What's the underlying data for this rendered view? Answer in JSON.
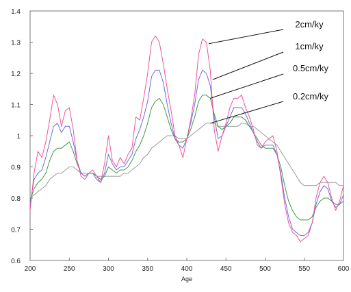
{
  "chart_data": {
    "type": "line",
    "title": "",
    "xlabel": "Age",
    "ylabel": "",
    "xlim": [
      200,
      600
    ],
    "ylim": [
      0.6,
      1.4
    ],
    "xticks": [
      "200",
      "250",
      "300",
      "350",
      "400",
      "450",
      "500",
      "550",
      "600"
    ],
    "yticks": [
      "0.6",
      "0.7",
      "0.8",
      "0.9",
      "1",
      "1.1",
      "1.2",
      "1.3",
      "1.4"
    ],
    "grid": false,
    "colors": {
      "2cm": "#f0549a",
      "1cm": "#6a6ae8",
      "0.5cm": "#3f9a3f",
      "0.2cm": "#9a9a9a"
    },
    "annotations": [
      {
        "text": "2cm/ky",
        "series": "2cm",
        "x": 428,
        "y": 1.295
      },
      {
        "text": "1cm/ky",
        "series": "1cm",
        "x": 433,
        "y": 1.18
      },
      {
        "text": "0.5cm/ky",
        "series": "0.5cm",
        "x": 430,
        "y": 1.12
      },
      {
        "text": "0.2cm/ky",
        "series": "0.2cm",
        "x": 430,
        "y": 1.04
      }
    ],
    "series": [
      {
        "key": "2cm",
        "x": [
          200,
          205,
          210,
          215,
          220,
          225,
          230,
          235,
          240,
          245,
          250,
          255,
          260,
          265,
          270,
          275,
          280,
          285,
          290,
          295,
          300,
          305,
          310,
          315,
          320,
          325,
          330,
          335,
          340,
          345,
          350,
          355,
          360,
          365,
          370,
          375,
          380,
          385,
          390,
          395,
          400,
          405,
          410,
          415,
          420,
          425,
          430,
          435,
          440,
          445,
          450,
          455,
          460,
          465,
          470,
          475,
          480,
          485,
          490,
          495,
          500,
          505,
          510,
          515,
          520,
          525,
          530,
          535,
          540,
          545,
          550,
          555,
          560,
          565,
          570,
          575,
          580,
          585,
          590,
          595,
          600
        ],
        "values": [
          0.76,
          0.88,
          0.95,
          0.93,
          0.98,
          1.05,
          1.13,
          1.1,
          1.03,
          1.08,
          1.09,
          1.02,
          0.92,
          0.87,
          0.86,
          0.88,
          0.89,
          0.87,
          0.85,
          0.91,
          1.0,
          0.92,
          0.9,
          0.93,
          0.91,
          0.94,
          0.96,
          1.06,
          1.05,
          1.12,
          1.2,
          1.3,
          1.32,
          1.3,
          1.23,
          1.15,
          1.08,
          1.0,
          0.97,
          0.93,
          0.99,
          1.05,
          1.13,
          1.26,
          1.31,
          1.3,
          1.21,
          1.02,
          0.95,
          1.0,
          1.04,
          1.09,
          1.12,
          1.12,
          1.13,
          1.09,
          1.06,
          1.02,
          0.97,
          0.96,
          0.98,
          0.99,
          1.0,
          0.95,
          0.87,
          0.78,
          0.72,
          0.69,
          0.68,
          0.66,
          0.67,
          0.68,
          0.72,
          0.8,
          0.85,
          0.87,
          0.85,
          0.8,
          0.76,
          0.79,
          0.84
        ]
      },
      {
        "key": "1cm",
        "x": [
          200,
          205,
          210,
          215,
          220,
          225,
          230,
          235,
          240,
          245,
          250,
          255,
          260,
          265,
          270,
          275,
          280,
          285,
          290,
          295,
          300,
          305,
          310,
          315,
          320,
          325,
          330,
          335,
          340,
          345,
          350,
          355,
          360,
          365,
          370,
          375,
          380,
          385,
          390,
          395,
          400,
          405,
          410,
          415,
          420,
          425,
          430,
          435,
          440,
          445,
          450,
          455,
          460,
          465,
          470,
          475,
          480,
          485,
          490,
          495,
          500,
          505,
          510,
          515,
          520,
          525,
          530,
          535,
          540,
          545,
          550,
          555,
          560,
          565,
          570,
          575,
          580,
          585,
          590,
          595,
          600
        ],
        "values": [
          0.78,
          0.86,
          0.88,
          0.89,
          0.93,
          0.98,
          1.03,
          1.04,
          1.01,
          1.03,
          1.03,
          0.98,
          0.92,
          0.88,
          0.87,
          0.88,
          0.88,
          0.86,
          0.85,
          0.88,
          0.94,
          0.91,
          0.89,
          0.9,
          0.9,
          0.92,
          0.94,
          0.99,
          1.02,
          1.06,
          1.11,
          1.19,
          1.21,
          1.21,
          1.17,
          1.1,
          1.04,
          0.99,
          0.97,
          0.96,
          0.99,
          1.04,
          1.1,
          1.18,
          1.21,
          1.2,
          1.16,
          1.06,
          0.99,
          1.0,
          1.03,
          1.06,
          1.09,
          1.09,
          1.09,
          1.07,
          1.04,
          1.01,
          0.98,
          0.96,
          0.97,
          0.97,
          0.97,
          0.94,
          0.88,
          0.8,
          0.74,
          0.7,
          0.69,
          0.68,
          0.68,
          0.69,
          0.72,
          0.78,
          0.82,
          0.84,
          0.83,
          0.79,
          0.77,
          0.78,
          0.81
        ]
      },
      {
        "key": "0.5cm",
        "x": [
          200,
          205,
          210,
          215,
          220,
          225,
          230,
          235,
          240,
          245,
          250,
          255,
          260,
          265,
          270,
          275,
          280,
          285,
          290,
          295,
          300,
          305,
          310,
          315,
          320,
          325,
          330,
          335,
          340,
          345,
          350,
          355,
          360,
          365,
          370,
          375,
          380,
          385,
          390,
          395,
          400,
          405,
          410,
          415,
          420,
          425,
          430,
          435,
          440,
          445,
          450,
          455,
          460,
          465,
          470,
          475,
          480,
          485,
          490,
          495,
          500,
          505,
          510,
          515,
          520,
          525,
          530,
          535,
          540,
          545,
          550,
          555,
          560,
          565,
          570,
          575,
          580,
          585,
          590,
          595,
          600
        ],
        "values": [
          0.79,
          0.83,
          0.85,
          0.86,
          0.88,
          0.92,
          0.95,
          0.96,
          0.96,
          0.97,
          0.98,
          0.95,
          0.91,
          0.88,
          0.87,
          0.88,
          0.88,
          0.87,
          0.86,
          0.87,
          0.9,
          0.89,
          0.88,
          0.89,
          0.89,
          0.9,
          0.92,
          0.95,
          0.97,
          1.0,
          1.04,
          1.09,
          1.11,
          1.12,
          1.1,
          1.06,
          1.02,
          0.99,
          0.98,
          0.98,
          0.99,
          1.02,
          1.06,
          1.11,
          1.13,
          1.13,
          1.12,
          1.07,
          1.03,
          1.02,
          1.03,
          1.04,
          1.06,
          1.06,
          1.06,
          1.05,
          1.03,
          1.01,
          0.99,
          0.97,
          0.96,
          0.96,
          0.96,
          0.94,
          0.9,
          0.84,
          0.79,
          0.76,
          0.74,
          0.73,
          0.73,
          0.73,
          0.74,
          0.77,
          0.79,
          0.8,
          0.8,
          0.79,
          0.78,
          0.78,
          0.79
        ]
      },
      {
        "key": "0.2cm",
        "x": [
          200,
          205,
          210,
          215,
          220,
          225,
          230,
          235,
          240,
          245,
          250,
          255,
          260,
          265,
          270,
          275,
          280,
          285,
          290,
          295,
          300,
          305,
          310,
          315,
          320,
          325,
          330,
          335,
          340,
          345,
          350,
          355,
          360,
          365,
          370,
          375,
          380,
          385,
          390,
          395,
          400,
          405,
          410,
          415,
          420,
          425,
          430,
          435,
          440,
          445,
          450,
          455,
          460,
          465,
          470,
          475,
          480,
          485,
          490,
          495,
          500,
          505,
          510,
          515,
          520,
          525,
          530,
          535,
          540,
          545,
          550,
          555,
          560,
          565,
          570,
          575,
          580,
          585,
          590,
          595,
          600
        ],
        "values": [
          0.8,
          0.81,
          0.82,
          0.83,
          0.84,
          0.86,
          0.87,
          0.88,
          0.88,
          0.89,
          0.9,
          0.9,
          0.89,
          0.88,
          0.88,
          0.88,
          0.88,
          0.87,
          0.87,
          0.87,
          0.87,
          0.87,
          0.87,
          0.87,
          0.88,
          0.88,
          0.89,
          0.9,
          0.91,
          0.93,
          0.94,
          0.96,
          0.97,
          0.98,
          0.99,
          1.0,
          1.0,
          1.0,
          0.99,
          0.99,
          0.99,
          1.0,
          1.01,
          1.02,
          1.03,
          1.04,
          1.04,
          1.04,
          1.03,
          1.03,
          1.03,
          1.03,
          1.03,
          1.03,
          1.04,
          1.04,
          1.03,
          1.03,
          1.02,
          1.01,
          1.0,
          0.99,
          0.98,
          0.97,
          0.95,
          0.93,
          0.91,
          0.89,
          0.87,
          0.85,
          0.84,
          0.84,
          0.84,
          0.84,
          0.85,
          0.85,
          0.85,
          0.85,
          0.85,
          0.84,
          0.84
        ]
      }
    ]
  }
}
